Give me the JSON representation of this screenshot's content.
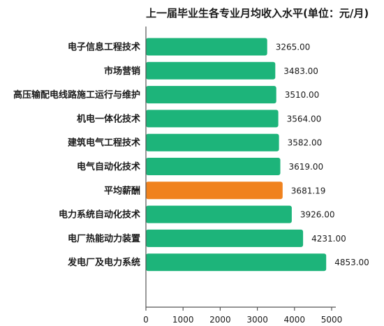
{
  "chart_data": {
    "type": "bar",
    "orientation": "horizontal",
    "title": "上一届毕业生各专业月均收入水平(单位：元/月)",
    "categories": [
      "电子信息工程技术",
      "市场营销",
      "高压输配电线路施工运行与维护",
      "机电一体化技术",
      "建筑电气工程技术",
      "电气自动化技术",
      "平均薪酬",
      "电力系统自动化技术",
      "电厂热能动力装置",
      "发电厂及电力系统"
    ],
    "values": [
      3265.0,
      3483.0,
      3510.0,
      3564.0,
      3582.0,
      3619.0,
      3681.19,
      3926.0,
      4231.0,
      4853.0
    ],
    "value_labels": [
      "3265.00",
      "3483.00",
      "3510.00",
      "3564.00",
      "3582.00",
      "3619.00",
      "3681.19",
      "3926.00",
      "4231.00",
      "4853.00"
    ],
    "highlight_index": 6,
    "xlim": [
      0,
      5000
    ],
    "x_ticks": [
      0,
      1000,
      2000,
      3000,
      4000,
      5000
    ],
    "x_tick_labels": [
      "0",
      "1000",
      "2000",
      "3000",
      "4000",
      "5000"
    ],
    "grid": false,
    "colors": {
      "bar": "#1db47a",
      "highlight_bar": "#f0821e",
      "highlight_label": "#e8922e",
      "text": "#1a1a1a",
      "axis": "#555555"
    }
  }
}
